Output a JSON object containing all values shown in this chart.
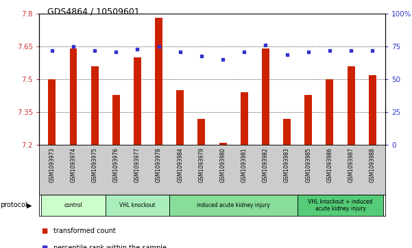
{
  "title": "GDS4864 / 10509601",
  "samples": [
    "GSM1093973",
    "GSM1093974",
    "GSM1093975",
    "GSM1093976",
    "GSM1093977",
    "GSM1093978",
    "GSM1093984",
    "GSM1093979",
    "GSM1093980",
    "GSM1093981",
    "GSM1093982",
    "GSM1093983",
    "GSM1093985",
    "GSM1093986",
    "GSM1093987",
    "GSM1093988"
  ],
  "transformed_count": [
    7.5,
    7.64,
    7.56,
    7.43,
    7.6,
    7.78,
    7.45,
    7.32,
    7.21,
    7.44,
    7.64,
    7.32,
    7.43,
    7.5,
    7.56,
    7.52
  ],
  "percentile_rank": [
    72,
    75,
    72,
    71,
    73,
    75,
    71,
    68,
    65,
    71,
    76,
    69,
    71,
    72,
    72,
    72
  ],
  "ylim_left": [
    7.2,
    7.8
  ],
  "ylim_right": [
    0,
    100
  ],
  "yticks_left": [
    7.2,
    7.35,
    7.5,
    7.65,
    7.8
  ],
  "yticks_right": [
    0,
    25,
    50,
    75,
    100
  ],
  "bar_color": "#CC2200",
  "dot_color": "#3333CC",
  "groups": [
    {
      "label": "control",
      "start": 0,
      "end": 3,
      "color": "#CCFFCC"
    },
    {
      "label": "VHL knockout",
      "start": 3,
      "end": 6,
      "color": "#AAEEBB"
    },
    {
      "label": "induced acute kidney injury",
      "start": 6,
      "end": 12,
      "color": "#88DD99"
    },
    {
      "label": "VHL knockout + induced\nacute kidney injury",
      "start": 12,
      "end": 16,
      "color": "#55CC77"
    }
  ],
  "legend_bar_label": "transformed count",
  "legend_dot_label": "percentile rank within the sample",
  "protocol_label": "protocol",
  "plot_bg_color": "#FFFFFF",
  "sample_bg_color": "#CCCCCC",
  "left_tick_color": "#CC3333",
  "right_tick_color": "#3333CC"
}
